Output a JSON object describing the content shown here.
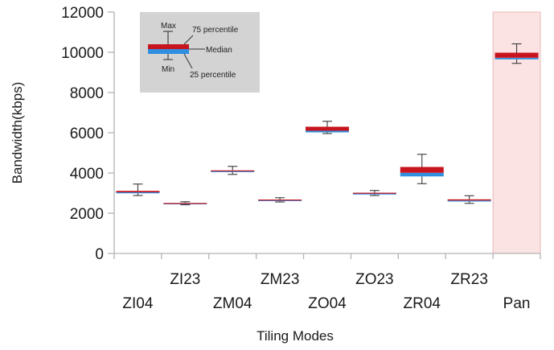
{
  "chart_data": {
    "type": "box",
    "title": "",
    "xlabel": "Tiling Modes",
    "ylabel": "Bandwidth(kbps)",
    "ylim": [
      0,
      12000
    ],
    "yticks": [
      0,
      2000,
      4000,
      6000,
      8000,
      10000,
      12000
    ],
    "grid": false,
    "categories": [
      "ZI04",
      "ZI23",
      "ZM04",
      "ZM23",
      "ZO04",
      "ZO23",
      "ZR04",
      "ZR23",
      "Pan"
    ],
    "boxes": [
      {
        "label": "ZI04",
        "min": 2880,
        "q1": 2990,
        "median": 3040,
        "q3": 3110,
        "max": 3450
      },
      {
        "label": "ZI23",
        "min": 2420,
        "q1": 2460,
        "median": 2490,
        "q3": 2510,
        "max": 2570
      },
      {
        "label": "ZM04",
        "min": 3930,
        "q1": 4050,
        "median": 4090,
        "q3": 4130,
        "max": 4330
      },
      {
        "label": "ZM23",
        "min": 2560,
        "q1": 2610,
        "median": 2650,
        "q3": 2680,
        "max": 2770
      },
      {
        "label": "ZO04",
        "min": 5960,
        "q1": 6020,
        "median": 6100,
        "q3": 6300,
        "max": 6570
      },
      {
        "label": "ZO23",
        "min": 2880,
        "q1": 2930,
        "median": 2980,
        "q3": 3020,
        "max": 3130
      },
      {
        "label": "ZR04",
        "min": 3470,
        "q1": 3830,
        "median": 4010,
        "q3": 4300,
        "max": 4930
      },
      {
        "label": "ZR23",
        "min": 2490,
        "q1": 2580,
        "median": 2630,
        "q3": 2690,
        "max": 2870
      },
      {
        "label": "Pan",
        "min": 9450,
        "q1": 9650,
        "median": 9730,
        "q3": 9980,
        "max": 10420
      }
    ],
    "highlight": {
      "category": "Pan",
      "color": "#fbe3e3"
    },
    "colors": {
      "upper_box": "#c8141e",
      "lower_box": "#2f8fe0",
      "whisker": "#3a3a3a",
      "axis": "#b3b3b3",
      "legend_bg": "#d3d3d3"
    },
    "legend": {
      "position": "top-left",
      "labels": {
        "max": "Max",
        "q3": "75 percentile",
        "median": "Median",
        "min": "Min",
        "q1": "25 percentile"
      }
    }
  }
}
